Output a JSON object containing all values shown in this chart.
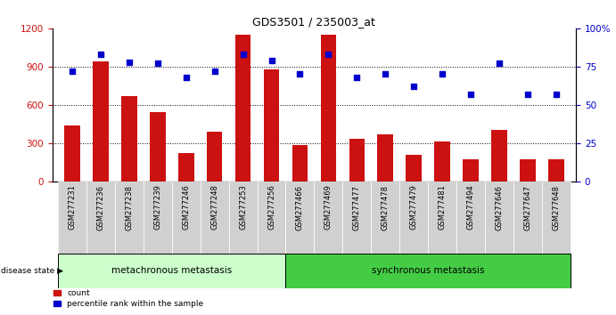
{
  "title": "GDS3501 / 235003_at",
  "samples": [
    "GSM277231",
    "GSM277236",
    "GSM277238",
    "GSM277239",
    "GSM277246",
    "GSM277248",
    "GSM277253",
    "GSM277256",
    "GSM277466",
    "GSM277469",
    "GSM277477",
    "GSM277478",
    "GSM277479",
    "GSM277481",
    "GSM277494",
    "GSM277646",
    "GSM277647",
    "GSM277648"
  ],
  "counts": [
    440,
    940,
    670,
    540,
    220,
    390,
    1150,
    880,
    280,
    1150,
    330,
    370,
    210,
    310,
    170,
    400,
    170,
    170
  ],
  "percentile": [
    72,
    83,
    78,
    77,
    68,
    72,
    83,
    79,
    70,
    83,
    68,
    70,
    62,
    70,
    57,
    77,
    57,
    57
  ],
  "group1_label": "metachronous metastasis",
  "group1_count": 8,
  "group2_label": "synchronous metastasis",
  "group2_count": 10,
  "bar_color": "#cc1111",
  "dot_color": "#0000cc",
  "ylim_left": [
    0,
    1200
  ],
  "ylim_right": [
    0,
    100
  ],
  "yticks_left": [
    0,
    300,
    600,
    900,
    1200
  ],
  "yticks_right": [
    0,
    25,
    50,
    75,
    100
  ],
  "group1_color": "#ccffcc",
  "group2_color": "#44cc44",
  "legend_count_label": "count",
  "legend_pct_label": "percentile rank within the sample",
  "disease_state_label": "disease state",
  "tick_label_bg": "#d0d0d0",
  "hgrid_vals": [
    300,
    600,
    900
  ]
}
